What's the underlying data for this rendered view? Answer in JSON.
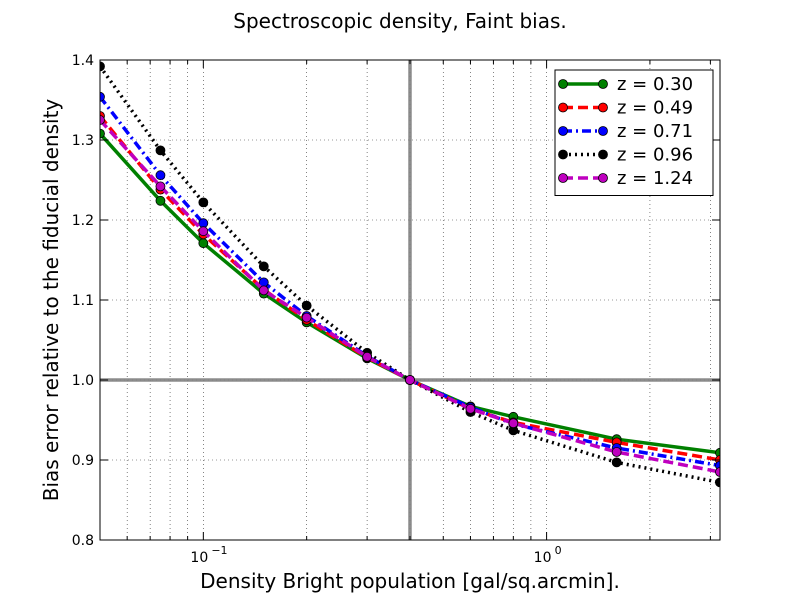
{
  "chart_data": {
    "type": "line",
    "title": "Spectroscopic density, Faint bias.",
    "xlabel": "Density Bright population [gal/sq.arcmin].",
    "ylabel": "Bias error relative to the fiducial density",
    "xscale": "log",
    "xlim": [
      0.05,
      3.2
    ],
    "ylim": [
      0.8,
      1.4
    ],
    "yticks": [
      0.8,
      0.9,
      1.0,
      1.1,
      1.2,
      1.3,
      1.4
    ],
    "ytick_labels": [
      "0.8",
      "0.9",
      "1.0",
      "1.1",
      "1.2",
      "1.3",
      "1.4"
    ],
    "xticks_major": [
      0.1,
      1.0
    ],
    "xtick_labels": [
      {
        "base": "10",
        "exp": "−1"
      },
      {
        "base": "10",
        "exp": "0"
      }
    ],
    "reference_lines": {
      "x": 0.4,
      "y": 1.0
    },
    "grid": true,
    "legend_position": "top-right",
    "x": [
      0.05,
      0.075,
      0.1,
      0.15,
      0.2,
      0.3,
      0.4,
      0.6,
      0.8,
      1.6,
      3.2
    ],
    "series": [
      {
        "name": "z = 0.30",
        "color": "#008000",
        "dash": "solid",
        "values": [
          1.308,
          1.224,
          1.171,
          1.108,
          1.072,
          1.027,
          1.0,
          0.967,
          0.954,
          0.926,
          0.909
        ]
      },
      {
        "name": "z = 0.49",
        "color": "#ff0000",
        "dash": "dashed",
        "values": [
          1.33,
          1.238,
          1.182,
          1.113,
          1.075,
          1.028,
          1.0,
          0.964,
          0.947,
          0.922,
          0.9
        ]
      },
      {
        "name": "z = 0.71",
        "color": "#0000ff",
        "dash": "dashdot",
        "values": [
          1.354,
          1.256,
          1.196,
          1.122,
          1.08,
          1.03,
          1.0,
          0.966,
          0.945,
          0.915,
          0.893
        ]
      },
      {
        "name": "z = 0.96",
        "color": "#000000",
        "dash": "dotted",
        "values": [
          1.392,
          1.287,
          1.222,
          1.142,
          1.093,
          1.034,
          1.0,
          0.96,
          0.937,
          0.897,
          0.872
        ]
      },
      {
        "name": "z = 1.24",
        "color": "#bf00bf",
        "dash": "dashed",
        "values": [
          1.325,
          1.242,
          1.186,
          1.112,
          1.078,
          1.029,
          1.0,
          0.964,
          0.946,
          0.91,
          0.885
        ]
      }
    ]
  }
}
